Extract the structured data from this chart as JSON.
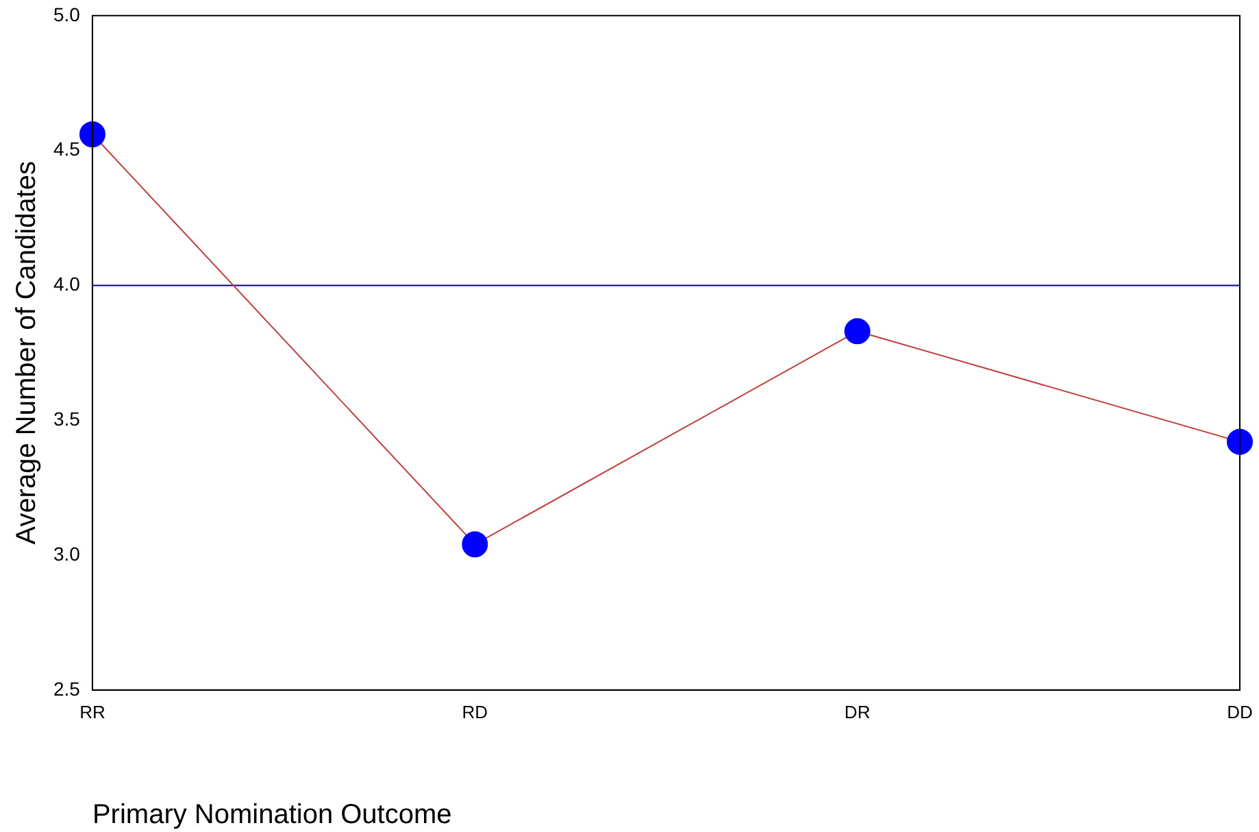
{
  "chart_data": {
    "type": "line",
    "xlabel": "Primary Nomination Outcome",
    "ylabel": "Average Number of Candidates",
    "categories": [
      "RR",
      "RD",
      "DR",
      "DD"
    ],
    "series": [
      {
        "color": "#c04040",
        "colors": [
          "#0000ff",
          "#0000ff",
          "#0000ff",
          "#0000ff"
        ],
        "values": [
          4.56,
          3.04,
          3.83,
          3.42
        ]
      }
    ],
    "ylim": [
      2.5,
      5.0
    ],
    "yticks": [
      {
        "value": 2.5,
        "label": "2.5"
      },
      {
        "value": 3.0,
        "label": "3.0"
      },
      {
        "value": 3.5,
        "label": "3.5"
      },
      {
        "value": 4.0,
        "label": "4.0"
      },
      {
        "value": 4.5,
        "label": "4.5"
      },
      {
        "value": 5.0,
        "label": "5.0"
      }
    ],
    "ref_lines": [
      {
        "axis": "y",
        "value": 4.0,
        "color": "#000080"
      }
    ],
    "grid": false,
    "legend": false,
    "marker": "circle",
    "line_style": "solid"
  }
}
